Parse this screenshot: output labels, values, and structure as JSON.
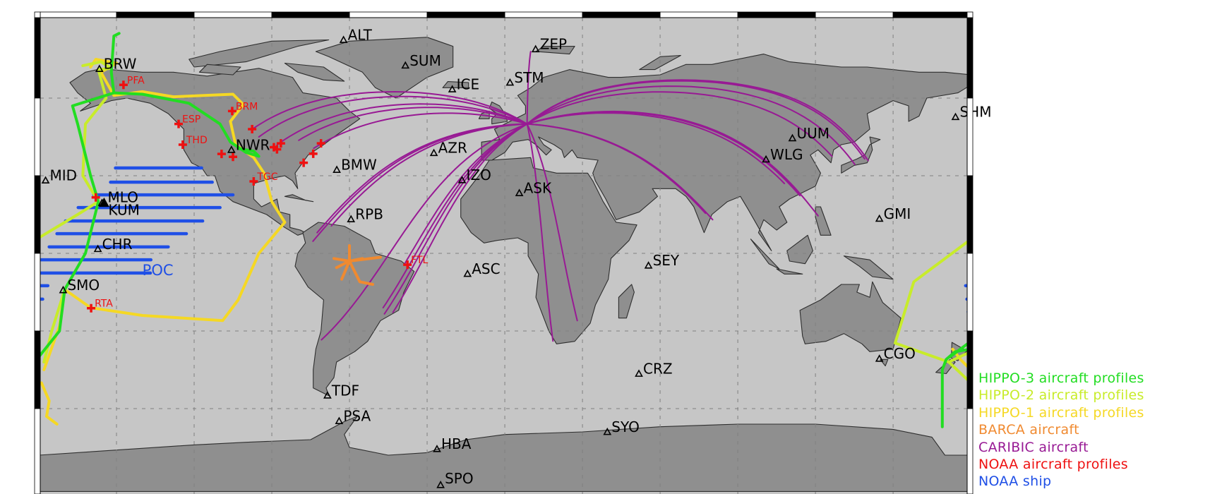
{
  "map": {
    "projection": "equirectangular",
    "lon_range": [
      -180,
      180
    ],
    "lat_range": [
      -90,
      90
    ],
    "grid_interval_deg": 30,
    "colors": {
      "ocean": "#c6c6c6",
      "land": "#8f8f8f",
      "coast": "#2e2e2e",
      "grid": "#808080"
    }
  },
  "stations": [
    {
      "code": "ALT",
      "lon": -62.3,
      "lat": 82.5
    },
    {
      "code": "BRW",
      "lon": -156.6,
      "lat": 71.3
    },
    {
      "code": "SUM",
      "lon": -38.4,
      "lat": 72.6
    },
    {
      "code": "ZEP",
      "lon": 11.9,
      "lat": 78.9
    },
    {
      "code": "ICE",
      "lon": -20.3,
      "lat": 63.4
    },
    {
      "code": "STM",
      "lon": 2.0,
      "lat": 66.0
    },
    {
      "code": "MID",
      "lon": -177.4,
      "lat": 28.2
    },
    {
      "code": "NWR",
      "lon": -105.6,
      "lat": 40.0
    },
    {
      "code": "BMW",
      "lon": -64.9,
      "lat": 32.3
    },
    {
      "code": "AZR",
      "lon": -27.4,
      "lat": 38.8
    },
    {
      "code": "IZO",
      "lon": -16.5,
      "lat": 28.3
    },
    {
      "code": "ASK",
      "lon": 5.6,
      "lat": 23.3
    },
    {
      "code": "RPB",
      "lon": -59.4,
      "lat": 13.2
    },
    {
      "code": "MLO",
      "lon": -155.6,
      "lat": 19.5
    },
    {
      "code": "KUM",
      "lon": -154.8,
      "lat": 19.5
    },
    {
      "code": "CHR",
      "lon": -157.2,
      "lat": 1.7
    },
    {
      "code": "SMO",
      "lon": -170.6,
      "lat": -14.2
    },
    {
      "code": "ASC",
      "lon": -14.4,
      "lat": -7.9
    },
    {
      "code": "SEY",
      "lon": 55.5,
      "lat": -4.7
    },
    {
      "code": "UUM",
      "lon": 111.1,
      "lat": 44.5
    },
    {
      "code": "WLG",
      "lon": 100.9,
      "lat": 36.3
    },
    {
      "code": "SHM",
      "lon": 174.1,
      "lat": 52.7
    },
    {
      "code": "GMI",
      "lon": 144.7,
      "lat": 13.4
    },
    {
      "code": "CGO",
      "lon": 144.7,
      "lat": -40.7
    },
    {
      "code": "CRZ",
      "lon": 51.8,
      "lat": -46.5
    },
    {
      "code": "TDF",
      "lon": -68.5,
      "lat": -54.9
    },
    {
      "code": "PSA",
      "lon": -64.0,
      "lat": -64.8
    },
    {
      "code": "SYO",
      "lon": 39.6,
      "lat": -69.0
    },
    {
      "code": "HBA",
      "lon": -26.2,
      "lat": -75.6
    },
    {
      "code": "SPO",
      "lon": -24.8,
      "lat": -89.5
    }
  ],
  "noaa_aircraft_sites": [
    {
      "label": "PFA",
      "lon": -147.3,
      "lat": 65.1
    },
    {
      "label": "BRM",
      "lon": -105.3,
      "lat": 55.0
    },
    {
      "label": "ESP",
      "lon": -126.0,
      "lat": 50.0
    },
    {
      "label": "THD",
      "lon": -124.4,
      "lat": 42.0
    },
    {
      "label": "TGC",
      "lon": -97.0,
      "lat": 27.8
    },
    {
      "label": "RTA",
      "lon": -159.8,
      "lat": -21.2
    },
    {
      "label": "FTL",
      "lon": -37.6,
      "lat": -4.4
    },
    {
      "label": "",
      "lon": -109.4,
      "lat": 38.4
    },
    {
      "label": "",
      "lon": -105.0,
      "lat": 37.3
    },
    {
      "label": "",
      "lon": -97.6,
      "lat": 48.0
    },
    {
      "label": "",
      "lon": -89.2,
      "lat": 41.0
    },
    {
      "label": "",
      "lon": -88.0,
      "lat": 40.2
    },
    {
      "label": "",
      "lon": -86.5,
      "lat": 42.5
    },
    {
      "label": "",
      "lon": -77.7,
      "lat": 35.0
    },
    {
      "label": "",
      "lon": -74.0,
      "lat": 38.5
    },
    {
      "label": "",
      "lon": -71.0,
      "lat": 42.5
    },
    {
      "label": "",
      "lon": -158.0,
      "lat": 21.6
    }
  ],
  "ship": {
    "label": "POC",
    "label_lon": -140.0,
    "label_lat": -8.5,
    "transects": [
      {
        "lat": 33.0,
        "lon_from": -150.4,
        "lon_to": -117.1
      },
      {
        "lat": 27.5,
        "lon_from": -152.3,
        "lon_to": -113.0
      },
      {
        "lat": 22.6,
        "lon_from": -158.8,
        "lon_to": -105.0
      },
      {
        "lat": 17.7,
        "lon_from": -164.8,
        "lon_to": -110.0
      },
      {
        "lat": 12.5,
        "lon_from": -169.7,
        "lon_to": -116.7
      },
      {
        "lat": 7.6,
        "lon_from": -173.0,
        "lon_to": -123.0
      },
      {
        "lat": 2.5,
        "lon_from": -176.0,
        "lon_to": -130.0
      },
      {
        "lat": -2.5,
        "lon_from": -180.0,
        "lon_to": -136.7
      },
      {
        "lat": -7.6,
        "lon_from": -180.0,
        "lon_to": -136.9
      },
      {
        "lat": -12.5,
        "lon_from": -180.0,
        "lon_to": -176.5
      },
      {
        "lat": -12.5,
        "lon_from": 178.0,
        "lon_to": 180.0
      },
      {
        "lat": -17.7,
        "lon_from": -180.0,
        "lon_to": -178.5
      },
      {
        "lat": -17.7,
        "lon_from": 178.5,
        "lon_to": 180.0
      },
      {
        "lat": -22.6,
        "lon_from": 179.0,
        "lon_to": 180.0
      },
      {
        "lat": -27.5,
        "lon_from": 179.2,
        "lon_to": 180.0
      }
    ]
  },
  "tracks": {
    "hippo1": [
      [
        [
          -160,
          72
        ],
        [
          -158,
          75
        ],
        [
          -150,
          73.5
        ],
        [
          -156,
          70
        ],
        [
          -151,
          61
        ],
        [
          -140,
          62.5
        ],
        [
          -128,
          60.5
        ],
        [
          -105,
          61.5
        ],
        [
          -101,
          57.5
        ],
        [
          -106,
          51
        ],
        [
          -104,
          42
        ],
        [
          -97,
          37
        ],
        [
          -93,
          31
        ],
        [
          -90,
          20
        ],
        [
          -85,
          12
        ],
        [
          -95,
          0
        ],
        [
          -103,
          -18
        ],
        [
          -109,
          -26
        ],
        [
          -140,
          -24
        ],
        [
          -160,
          -21
        ],
        [
          -170,
          -14
        ],
        [
          -172,
          -28
        ],
        [
          -178,
          -45
        ]
      ],
      [
        [
          -179,
          -50
        ],
        [
          -176,
          -57
        ],
        [
          -177,
          -63
        ],
        [
          -173,
          -66
        ]
      ],
      [
        [
          173,
          -37
        ],
        [
          176,
          -41
        ],
        [
          180,
          -45
        ]
      ]
    ],
    "hippo2": [
      [
        [
          -163,
          72.5
        ],
        [
          -156,
          74
        ],
        [
          -152,
          71.5
        ],
        [
          -157,
          71
        ],
        [
          -154,
          60
        ],
        [
          -162,
          50
        ],
        [
          -163,
          30
        ],
        [
          -157,
          20
        ],
        [
          -165,
          15
        ],
        [
          -180,
          6
        ]
      ],
      [
        [
          -170,
          -14
        ],
        [
          -175,
          -30
        ],
        [
          -178,
          -42
        ]
      ],
      [
        [
          180,
          5.4
        ],
        [
          158,
          -11
        ],
        [
          150.8,
          -34.7
        ],
        [
          171.5,
          -42
        ],
        [
          180,
          -38
        ]
      ],
      [
        [
          171.5,
          -42
        ],
        [
          180,
          -50
        ]
      ]
    ],
    "hippo3": [
      [
        [
          -149,
          85
        ],
        [
          -151,
          84
        ],
        [
          -152,
          70
        ],
        [
          -151,
          62
        ],
        [
          -140,
          61.5
        ],
        [
          -122,
          58
        ],
        [
          -110,
          50
        ],
        [
          -106,
          43
        ],
        [
          -100,
          39
        ],
        [
          -95,
          37.5
        ],
        [
          -97,
          39.5
        ],
        [
          -103,
          40.5
        ]
      ],
      [
        [
          -151,
          62
        ],
        [
          -167,
          57
        ],
        [
          -165,
          50
        ],
        [
          -160,
          30
        ],
        [
          -157,
          20
        ],
        [
          -162,
          0
        ],
        [
          -170,
          -14
        ],
        [
          -172,
          -30
        ],
        [
          -180,
          -40
        ]
      ],
      [
        [
          180,
          -37
        ],
        [
          174,
          -38
        ],
        [
          170.5,
          -41
        ],
        [
          169,
          -45
        ],
        [
          169,
          -67
        ]
      ],
      [
        [
          180,
          -34
        ],
        [
          172,
          -40
        ]
      ]
    ],
    "barca": [
      [
        [
          -60,
          -3
        ],
        [
          -48,
          -1.5
        ]
      ],
      [
        [
          -60,
          -3
        ],
        [
          -66,
          -2
        ]
      ],
      [
        [
          -60,
          -3
        ],
        [
          -60,
          3
        ]
      ],
      [
        [
          -60,
          -3
        ],
        [
          -63,
          -10
        ]
      ],
      [
        [
          -60,
          -3
        ],
        [
          -56,
          -11
        ],
        [
          -51,
          -12
        ]
      ],
      [
        [
          -60,
          -3
        ],
        [
          -65,
          -5.5
        ]
      ],
      [
        [
          -60,
          -3
        ],
        [
          -55,
          -2
        ]
      ]
    ],
    "caribic": {
      "hub": [
        8.6,
        50.0
      ],
      "destinations": [
        [
          -79.6,
          43.7
        ],
        [
          -87.9,
          42.0
        ],
        [
          -95.0,
          45.0
        ],
        [
          -97.5,
          48.0
        ],
        [
          -73.8,
          40.6
        ],
        [
          -67.0,
          10.6
        ],
        [
          -74.1,
          4.7
        ],
        [
          -72.5,
          8.0
        ],
        [
          -46.5,
          -23.4
        ],
        [
          -47.0,
          -21.0
        ],
        [
          -43.2,
          -22.8
        ],
        [
          -70.8,
          -33.4
        ],
        [
          -38.5,
          -3.7
        ],
        [
          18.6,
          -33.9
        ],
        [
          28.0,
          -26.0
        ],
        [
          80.3,
          13.0
        ],
        [
          77.5,
          15.5
        ],
        [
          113.3,
          23.4
        ],
        [
          114.0,
          22.3
        ],
        [
          108.0,
          27.0
        ],
        [
          121.0,
          14.5
        ],
        [
          135.2,
          34.4
        ],
        [
          140.4,
          35.8
        ],
        [
          126.4,
          37.5
        ],
        [
          139.0,
          36.5
        ],
        [
          10.0,
          78.0
        ]
      ]
    }
  },
  "legend": [
    {
      "label": "HIPPO-3 aircraft profiles",
      "color": "#22dd22"
    },
    {
      "label": "HIPPO-2 aircraft profiles",
      "color": "#c8ec2a"
    },
    {
      "label": "HIPPO-1 aircraft profiles",
      "color": "#f5d824"
    },
    {
      "label": "BARCA aircraft",
      "color": "#f08a30"
    },
    {
      "label": "CARIBIC aircraft",
      "color": "#981a94"
    },
    {
      "label": "NOAA aircraft profiles",
      "color": "#ee1111"
    },
    {
      "label": "NOAA ship",
      "color": "#1f4fe6"
    }
  ]
}
